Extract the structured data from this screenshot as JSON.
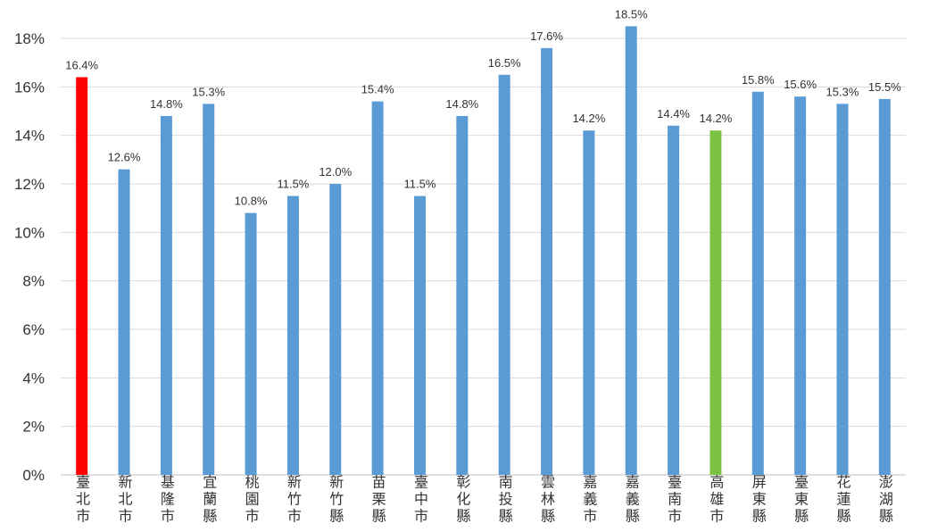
{
  "chart_data": {
    "type": "bar",
    "title": "",
    "xlabel": "",
    "ylabel": "",
    "ylim": [
      0,
      18
    ],
    "y_tick_step": 2,
    "y_tick_labels": [
      "0%",
      "2%",
      "4%",
      "6%",
      "8%",
      "10%",
      "12%",
      "14%",
      "16%",
      "18%"
    ],
    "grid": true,
    "legend": "none",
    "categories": [
      "臺北市",
      "新北市",
      "基隆市",
      "宜蘭縣",
      "桃園市",
      "新竹市",
      "新竹縣",
      "苗栗縣",
      "臺中市",
      "彰化縣",
      "南投縣",
      "雲林縣",
      "嘉義市",
      "嘉義縣",
      "臺南市",
      "高雄市",
      "屏東縣",
      "臺東縣",
      "花蓮縣",
      "澎湖縣"
    ],
    "values": [
      16.4,
      12.6,
      14.8,
      15.3,
      10.8,
      11.5,
      12.0,
      15.4,
      11.5,
      14.8,
      16.5,
      17.6,
      14.2,
      18.5,
      14.4,
      14.2,
      15.8,
      15.6,
      15.3,
      15.5
    ],
    "data_labels": [
      "16.4%",
      "12.6%",
      "14.8%",
      "15.3%",
      "10.8%",
      "11.5%",
      "12.0%",
      "15.4%",
      "11.5%",
      "14.8%",
      "16.5%",
      "17.6%",
      "14.2%",
      "18.5%",
      "14.4%",
      "14.2%",
      "15.8%",
      "15.6%",
      "15.3%",
      "15.5%"
    ],
    "colors": {
      "default": "#5B9BD5",
      "highlight_taipei": "#FF0000",
      "highlight_kaohsiung": "#7DC142",
      "grid": "#D9D9D9",
      "axis": "#BFBFBF",
      "text": "#333333"
    },
    "highlights": {
      "臺北市": "highlight_taipei",
      "高雄市": "highlight_kaohsiung"
    }
  }
}
